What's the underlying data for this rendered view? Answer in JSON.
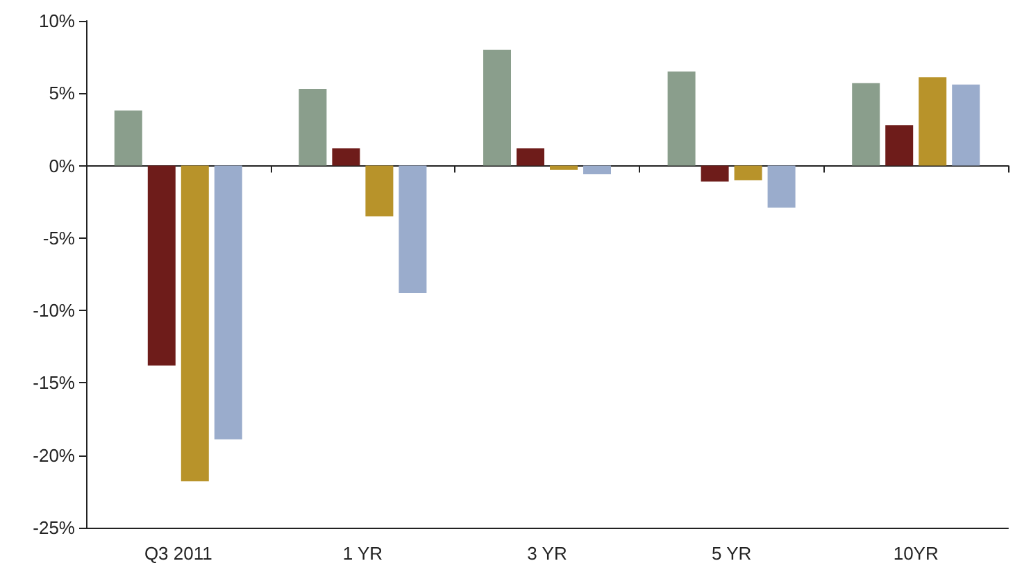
{
  "chart_data": {
    "type": "bar",
    "categories": [
      "Q3 2011",
      "1 YR",
      "3 YR",
      "5 YR",
      "10YR"
    ],
    "series": [
      {
        "color": "#8a9e8c",
        "values": [
          3.8,
          5.3,
          8.0,
          6.5,
          5.7
        ]
      },
      {
        "color": "#6e1c1a",
        "values": [
          -13.8,
          1.2,
          1.2,
          -1.1,
          2.8
        ]
      },
      {
        "color": "#b8932a",
        "values": [
          -21.8,
          -3.5,
          -0.3,
          -1.0,
          6.1
        ]
      },
      {
        "color": "#9aaccc",
        "values": [
          -18.9,
          -8.8,
          -0.6,
          -2.9,
          5.6
        ]
      }
    ],
    "ylim": [
      -25,
      10
    ],
    "yticks": [
      {
        "value": -25,
        "label": "-25%"
      },
      {
        "value": -20,
        "label": "-20%"
      },
      {
        "value": -15,
        "label": "-15%"
      },
      {
        "value": -10,
        "label": "-10%"
      },
      {
        "value": -5,
        "label": "-5%"
      },
      {
        "value": 0,
        "label": "0%"
      },
      {
        "value": 5,
        "label": "5%"
      },
      {
        "value": 10,
        "label": "10%"
      }
    ],
    "legend": false
  }
}
